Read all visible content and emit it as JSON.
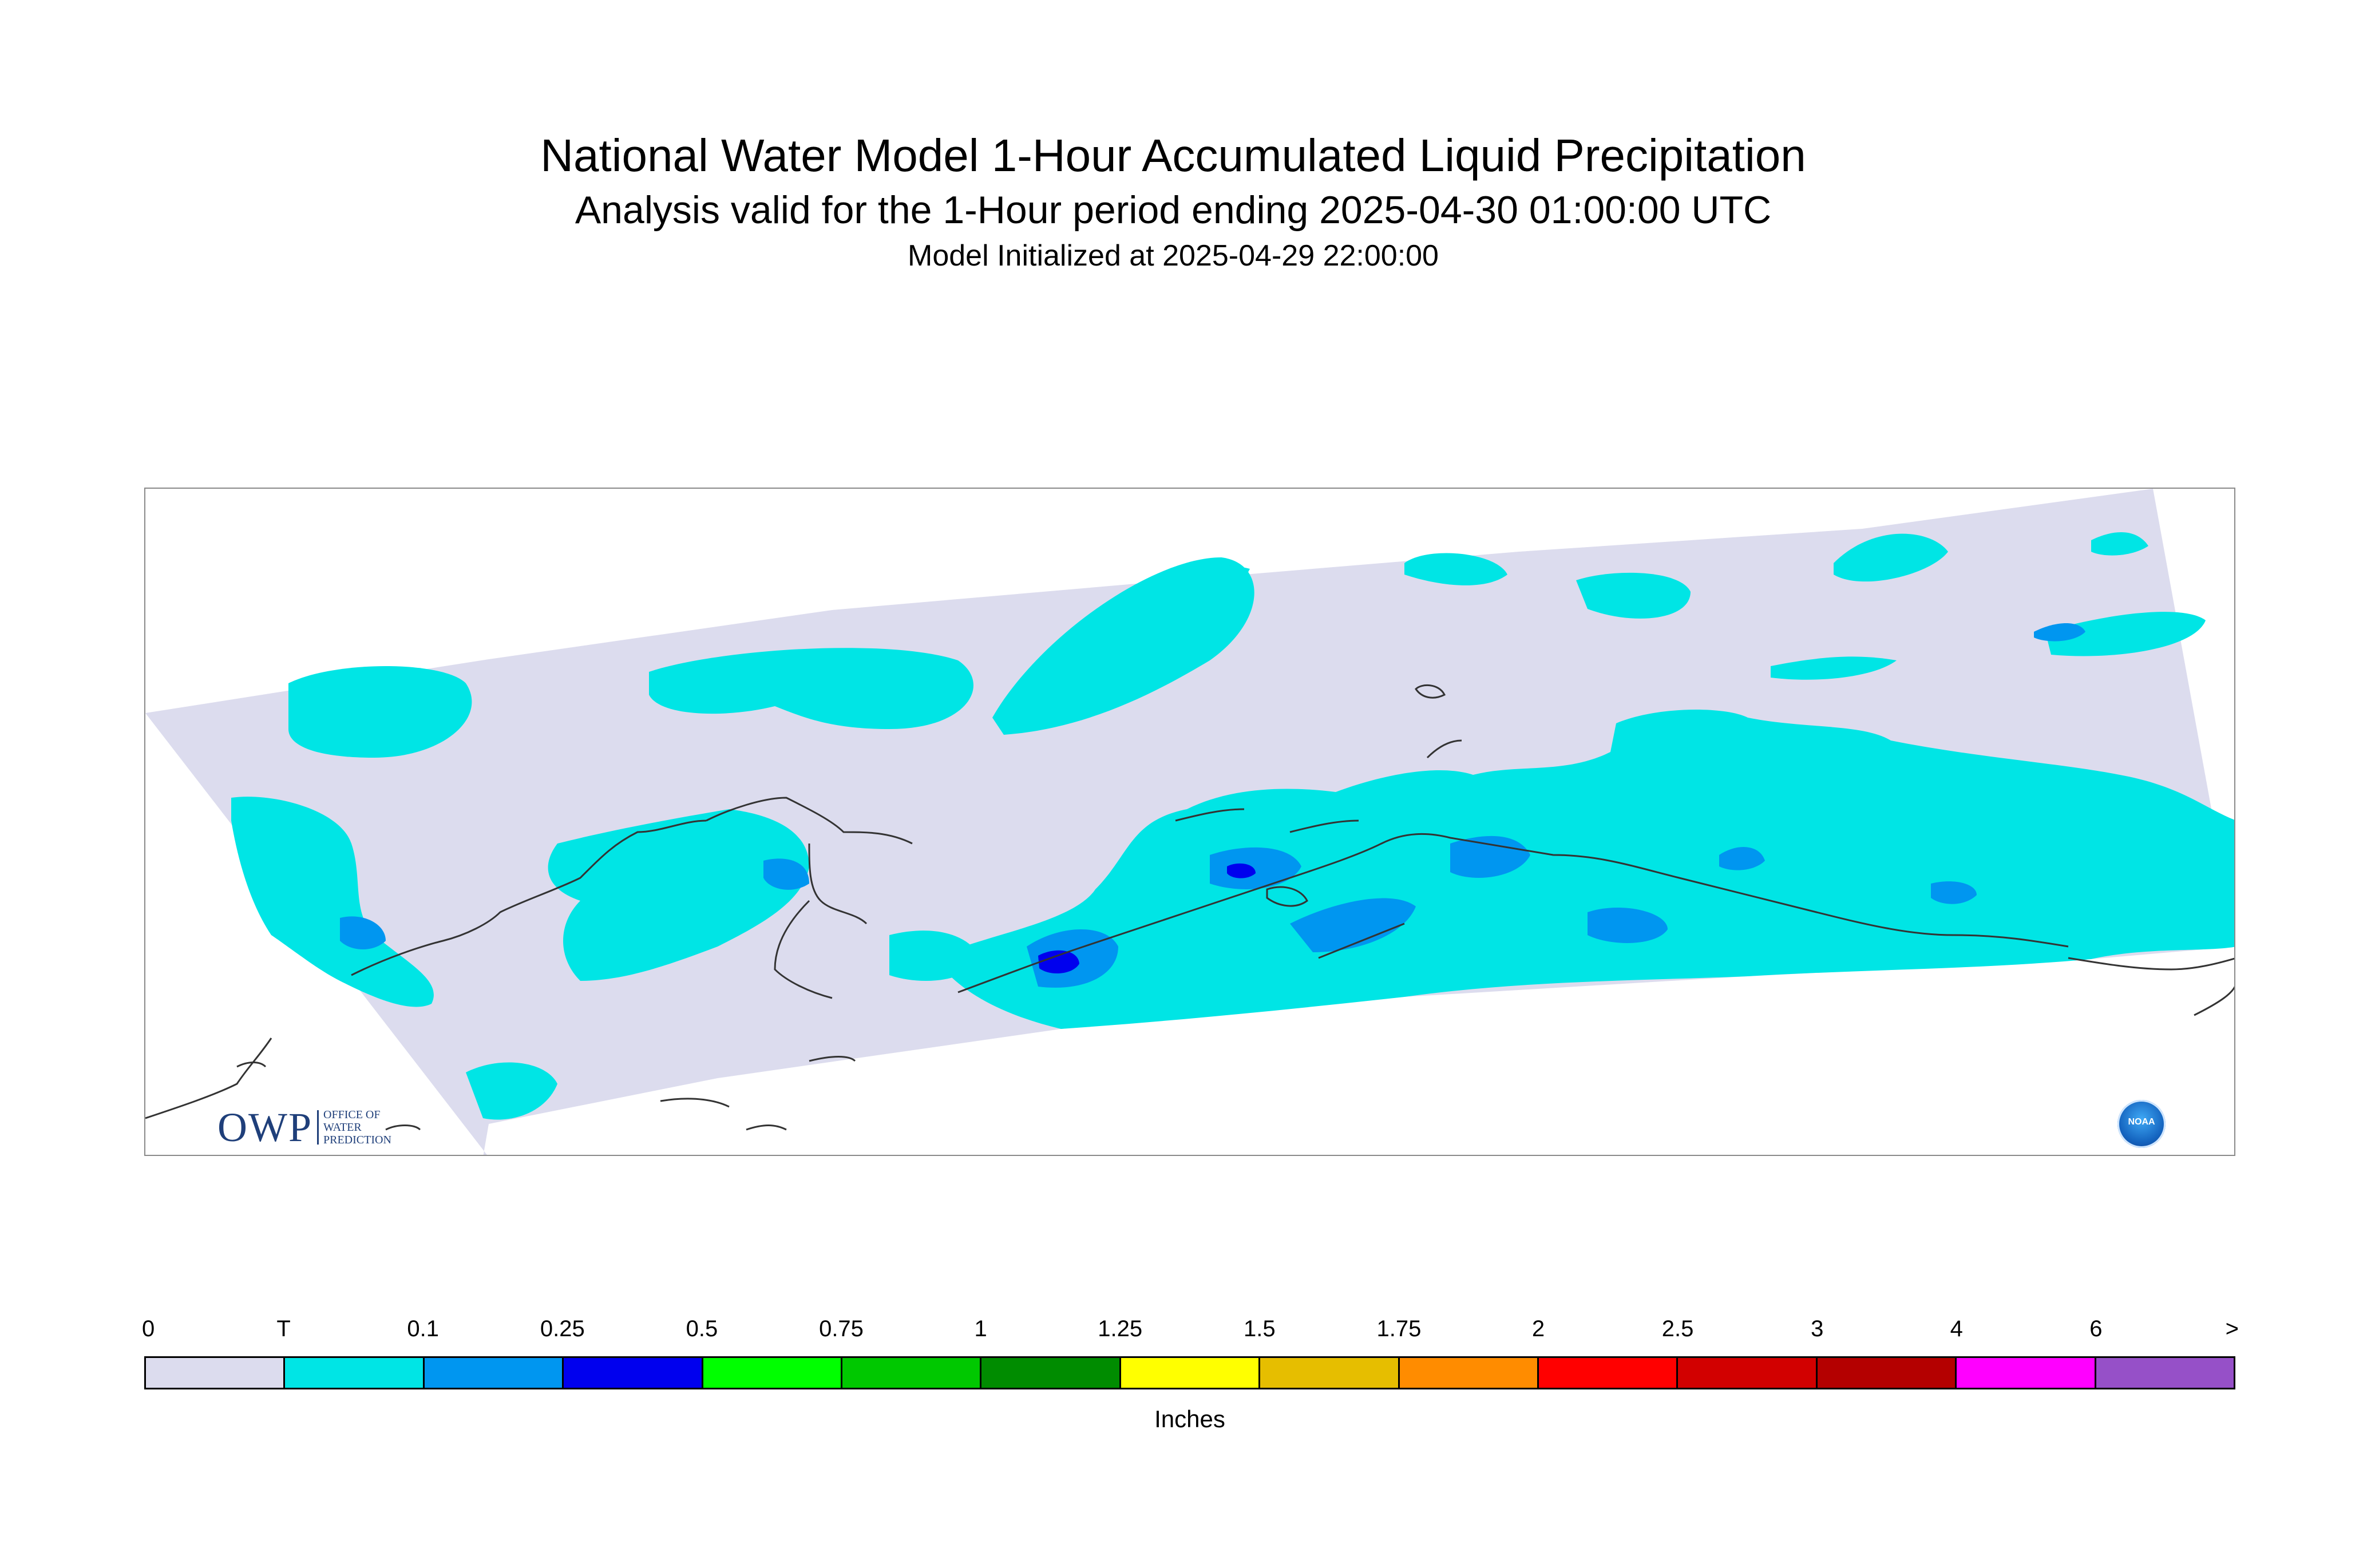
{
  "title": "National Water Model 1-Hour Accumulated Liquid Precipitation",
  "subtitle": "Analysis valid for the 1-Hour period ending 2025-04-30 01:00:00 UTC",
  "initialized": "Model Initialized at 2025-04-29 22:00:00",
  "logos": {
    "owp_mark": "OWP",
    "owp_text_1": "OFFICE OF",
    "owp_text_2": "WATER",
    "owp_text_3": "PREDICTION",
    "noaa_text": "NOAA"
  },
  "legend": {
    "tick_labels": [
      "0",
      "T",
      "0.1",
      "0.25",
      "0.5",
      "0.75",
      "1",
      "1.25",
      "1.5",
      "1.75",
      "2",
      "2.5",
      "3",
      "4",
      "6",
      ">"
    ],
    "colors": [
      "#dcdcee",
      "#00e5e5",
      "#0096f0",
      "#0000ee",
      "#00ff00",
      "#00c800",
      "#008c00",
      "#ffff00",
      "#e6be00",
      "#ff8c00",
      "#ff0000",
      "#d20000",
      "#b40000",
      "#ff00ff",
      "#9650c8"
    ],
    "unit": "Inches"
  },
  "map_colors": {
    "domain_fill": "#dcdcee",
    "trace": "#00e5e5",
    "light": "#0096f0",
    "moderate": "#0000ee",
    "coast": "#333333"
  }
}
